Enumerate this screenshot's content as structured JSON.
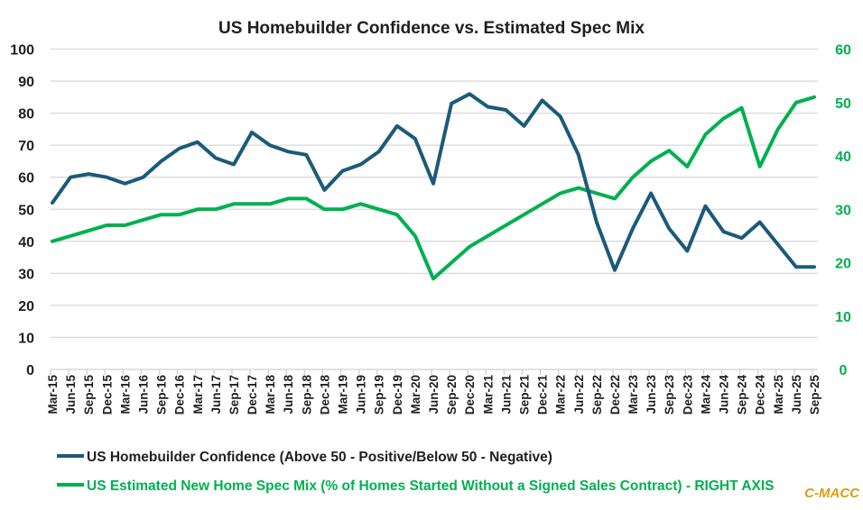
{
  "chart_data": {
    "type": "line",
    "title": "US Homebuilder Confidence vs. Estimated Spec Mix",
    "xlabel": "",
    "ylabel": "",
    "ylabel_right": "",
    "categories": [
      "Mar-15",
      "Jun-15",
      "Sep-15",
      "Dec-15",
      "Mar-16",
      "Jun-16",
      "Sep-16",
      "Dec-16",
      "Mar-17",
      "Jun-17",
      "Sep-17",
      "Dec-17",
      "Mar-18",
      "Jun-18",
      "Sep-18",
      "Dec-18",
      "Mar-19",
      "Jun-19",
      "Sep-19",
      "Dec-19",
      "Mar-20",
      "Jun-20",
      "Sep-20",
      "Dec-20",
      "Mar-21",
      "Jun-21",
      "Sep-21",
      "Dec-21",
      "Mar-22",
      "Jun-22",
      "Sep-22",
      "Dec-22",
      "Mar-23",
      "Jun-23",
      "Sep-23",
      "Dec-23",
      "Mar-24",
      "Jun-24",
      "Sep-24",
      "Dec-24",
      "Mar-25",
      "Jun-25",
      "Sep-25"
    ],
    "ylim": [
      0,
      100
    ],
    "yticks": [
      0,
      10,
      20,
      30,
      40,
      50,
      60,
      70,
      80,
      90,
      100
    ],
    "ylim_right": [
      0,
      60
    ],
    "yticks_right": [
      0,
      10,
      20,
      30,
      40,
      50,
      60
    ],
    "grid": true,
    "legend_position": "bottom-left",
    "series": [
      {
        "name": "US Homebuilder Confidence (Above 50 - Positive/Below 50 - Negative)",
        "axis": "left",
        "color": "#1b5a7a",
        "values": [
          52,
          60,
          61,
          60,
          58,
          60,
          65,
          69,
          71,
          66,
          64,
          74,
          70,
          68,
          67,
          56,
          62,
          64,
          68,
          76,
          72,
          58,
          83,
          86,
          82,
          81,
          76,
          84,
          79,
          67,
          46,
          31,
          44,
          55,
          44,
          37,
          51,
          43,
          41,
          46,
          39,
          32,
          32
        ]
      },
      {
        "name": "US Estimated New Home Spec Mix (% of Homes Started Without a Signed Sales Contract) - RIGHT AXIS",
        "axis": "right",
        "color": "#00b050",
        "values": [
          24,
          25,
          26,
          27,
          27,
          28,
          29,
          29,
          30,
          30,
          31,
          31,
          31,
          32,
          32,
          30,
          30,
          31,
          30,
          29,
          25,
          17,
          20,
          23,
          25,
          27,
          29,
          31,
          33,
          34,
          33,
          32,
          36,
          39,
          41,
          38,
          44,
          47,
          49,
          38,
          45,
          50,
          51
        ]
      }
    ],
    "annotations": [
      {
        "text": "C-MACC",
        "position": "bottom-right",
        "color": "#d4a017"
      }
    ]
  }
}
